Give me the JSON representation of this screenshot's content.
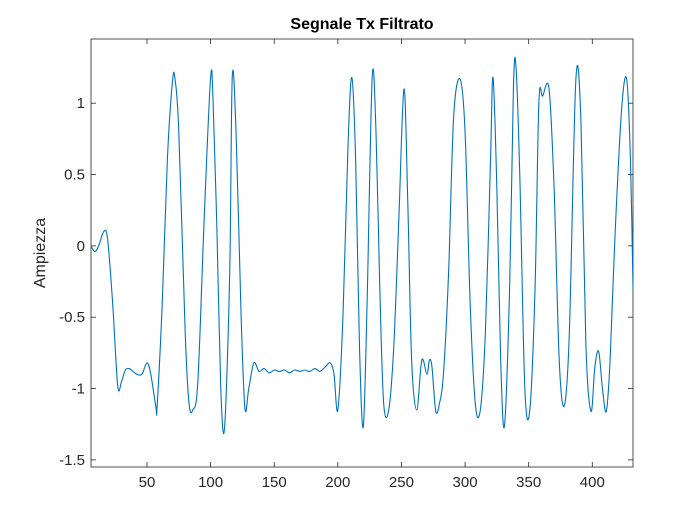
{
  "chart_data": {
    "type": "line",
    "title": "Segnale Tx Filtrato",
    "xlabel": "",
    "ylabel": "Ampiezza",
    "xlim": [
      6,
      432
    ],
    "ylim": [
      -1.55,
      1.45
    ],
    "xticks": [
      50,
      100,
      150,
      200,
      250,
      300,
      350,
      400
    ],
    "xtick_labels": [
      "50",
      "100",
      "150",
      "200",
      "250",
      "300",
      "350",
      "400"
    ],
    "yticks": [
      -1.5,
      -1,
      -0.5,
      0,
      0.5,
      1
    ],
    "ytick_labels": [
      "-1.5",
      "-1",
      "-0.5",
      "0",
      "0.5",
      "1"
    ],
    "grid": false,
    "series": [
      {
        "color": "#0072BD",
        "x": [
          6,
          9,
          12,
          16,
          19,
          23,
          27,
          30,
          33,
          36,
          39,
          42,
          46,
          50,
          53,
          57,
          58,
          62,
          66,
          70,
          72,
          75,
          80,
          83,
          86,
          90,
          95,
          100,
          102,
          105,
          108,
          111,
          115,
          117,
          120,
          124,
          127,
          130,
          134,
          138,
          142,
          146,
          150,
          154,
          158,
          162,
          166,
          170,
          174,
          178,
          182,
          186,
          190,
          194,
          197,
          200,
          204,
          208,
          211,
          214,
          217,
          220,
          223,
          227,
          230,
          233,
          236,
          240,
          244,
          248,
          252,
          255,
          258,
          262,
          266,
          270,
          272,
          274,
          277,
          280,
          283,
          287,
          291,
          296,
          300,
          304,
          308,
          312,
          316,
          320,
          322,
          325,
          328,
          331,
          335,
          338,
          340,
          343,
          347,
          351,
          355,
          358,
          361,
          366,
          370,
          374,
          378,
          382,
          387,
          391,
          395,
          399,
          402,
          405,
          408,
          411,
          414,
          418,
          423,
          427,
          430,
          432
        ],
        "y": [
          0.0,
          -0.04,
          0.0,
          0.1,
          0.05,
          -0.4,
          -0.98,
          -0.95,
          -0.87,
          -0.86,
          -0.88,
          -0.9,
          -0.9,
          -0.82,
          -0.9,
          -1.13,
          -1.12,
          -0.4,
          0.6,
          1.15,
          1.17,
          0.8,
          -0.6,
          -1.1,
          -1.15,
          -0.95,
          0.2,
          1.18,
          1.0,
          0.1,
          -1.0,
          -1.27,
          -0.2,
          1.18,
          0.8,
          -0.5,
          -1.14,
          -1.0,
          -0.82,
          -0.88,
          -0.86,
          -0.89,
          -0.87,
          -0.88,
          -0.87,
          -0.89,
          -0.87,
          -0.88,
          -0.87,
          -0.88,
          -0.86,
          -0.88,
          -0.85,
          -0.82,
          -0.9,
          -1.15,
          -0.5,
          0.7,
          1.18,
          0.6,
          -0.7,
          -1.27,
          -0.4,
          1.18,
          0.8,
          -0.3,
          -1.1,
          -1.15,
          -0.7,
          0.2,
          1.1,
          0.3,
          -0.8,
          -1.15,
          -0.8,
          -0.9,
          -0.8,
          -0.85,
          -1.16,
          -1.1,
          -0.9,
          -0.2,
          0.9,
          1.17,
          0.8,
          -0.4,
          -1.1,
          -1.15,
          -0.6,
          0.6,
          1.18,
          0.4,
          -0.8,
          -1.26,
          -0.3,
          1.1,
          1.26,
          0.5,
          -1.0,
          -1.14,
          -0.3,
          1.0,
          1.05,
          1.1,
          0.4,
          -0.8,
          -1.12,
          -0.6,
          1.15,
          0.9,
          -0.7,
          -1.16,
          -0.85,
          -0.74,
          -1.0,
          -1.16,
          -0.8,
          0.1,
          0.95,
          1.17,
          0.6,
          -0.3
        ]
      }
    ]
  }
}
